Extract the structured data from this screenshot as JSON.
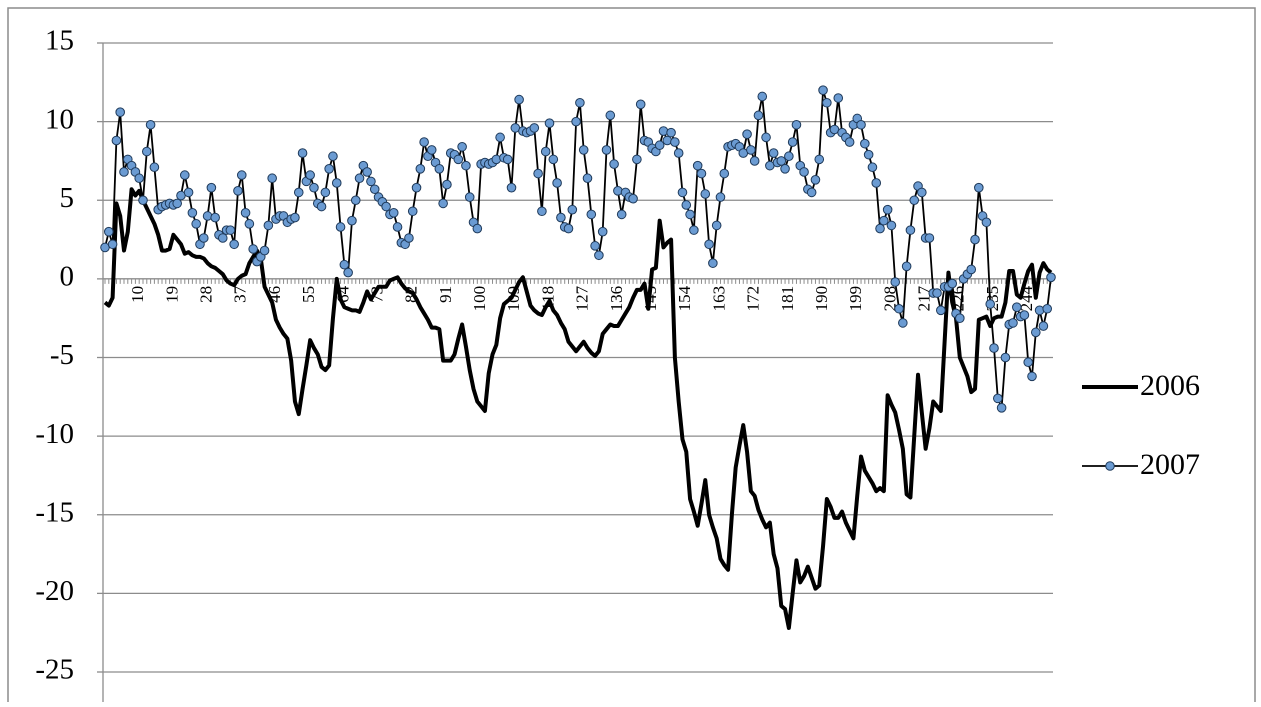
{
  "chart_data": {
    "type": "line",
    "categories": [
      null,
      null,
      null,
      null,
      null,
      null,
      null,
      null,
      null,
      10,
      null,
      null,
      null,
      null,
      null,
      null,
      null,
      null,
      19,
      null,
      null,
      null,
      null,
      null,
      null,
      null,
      null,
      28,
      null,
      null,
      null,
      null,
      null,
      null,
      null,
      null,
      37,
      null,
      null,
      null,
      null,
      null,
      null,
      null,
      null,
      46,
      null,
      null,
      null,
      null,
      null,
      null,
      null,
      null,
      55,
      null,
      null,
      null,
      null,
      null,
      null,
      null,
      null,
      64,
      null,
      null,
      null,
      null,
      null,
      null,
      null,
      null,
      73,
      null,
      null,
      null,
      null,
      null,
      null,
      null,
      null,
      82,
      null,
      null,
      null,
      null,
      null,
      null,
      null,
      null,
      91,
      null,
      null,
      null,
      null,
      null,
      null,
      null,
      null,
      100,
      null,
      null,
      null,
      null,
      null,
      null,
      null,
      null,
      109,
      null,
      null,
      null,
      null,
      null,
      null,
      null,
      null,
      118,
      null,
      null,
      null,
      null,
      null,
      null,
      null,
      null,
      127,
      null,
      null,
      null,
      null,
      null,
      null,
      null,
      null,
      136,
      null,
      null,
      null,
      null,
      null,
      null,
      null,
      null,
      145,
      null,
      null,
      null,
      null,
      null,
      null,
      null,
      null,
      154,
      null,
      null,
      null,
      null,
      null,
      null,
      null,
      null,
      163,
      null,
      null,
      null,
      null,
      null,
      null,
      null,
      null,
      172,
      null,
      null,
      null,
      null,
      null,
      null,
      null,
      null,
      181,
      null,
      null,
      null,
      null,
      null,
      null,
      null,
      null,
      190,
      null,
      null,
      null,
      null,
      null,
      null,
      null,
      null,
      199,
      null,
      null,
      null,
      null,
      null,
      null,
      null,
      null,
      208,
      null,
      null,
      null,
      null,
      null,
      null,
      null,
      null,
      217,
      null,
      null,
      null,
      null,
      null,
      null,
      null,
      null,
      226,
      null,
      null,
      null,
      null,
      null,
      null,
      null,
      null,
      235,
      null,
      null,
      null,
      null,
      null,
      null,
      null,
      null,
      244,
      null,
      null,
      null,
      null,
      null,
      null
    ],
    "series": [
      {
        "name": "2006",
        "color": "#000000",
        "values": [
          -1.5,
          -1.7,
          -1.2,
          4.8,
          4.0,
          1.8,
          3.0,
          5.7,
          5.3,
          5.6,
          5.0,
          4.5,
          4.0,
          3.5,
          2.8,
          1.8,
          1.8,
          1.9,
          2.8,
          2.5,
          2.2,
          1.6,
          1.7,
          1.5,
          1.4,
          1.4,
          1.3,
          1.0,
          0.8,
          0.7,
          0.5,
          0.3,
          -0.1,
          -0.3,
          -0.4,
          0.0,
          0.2,
          0.3,
          1.0,
          1.4,
          1.8,
          1.3,
          -0.5,
          -1.0,
          -1.5,
          -2.6,
          -3.1,
          -3.5,
          -3.8,
          -5.2,
          -7.8,
          -8.6,
          -7.0,
          -5.5,
          -3.9,
          -4.4,
          -4.8,
          -5.6,
          -5.8,
          -5.5,
          -2.5,
          0.0,
          -1.3,
          -1.8,
          -1.9,
          -2.0,
          -2.0,
          -2.1,
          -1.5,
          -0.8,
          -1.3,
          -0.9,
          -0.5,
          -0.5,
          -0.5,
          -0.1,
          0.0,
          0.1,
          -0.3,
          -0.6,
          -0.8,
          -0.9,
          -1.3,
          -1.8,
          -2.2,
          -2.6,
          -3.1,
          -3.1,
          -3.2,
          -5.2,
          -5.2,
          -5.2,
          -4.8,
          -3.8,
          -2.9,
          -4.3,
          -5.8,
          -7.0,
          -7.8,
          -8.1,
          -8.4,
          -6.0,
          -4.8,
          -4.2,
          -2.5,
          -1.6,
          -1.4,
          -1.2,
          -0.7,
          -0.2,
          0.1,
          -0.8,
          -1.7,
          -2.0,
          -2.2,
          -2.3,
          -1.8,
          -1.4,
          -2.0,
          -2.3,
          -2.8,
          -3.2,
          -4.0,
          -4.3,
          -4.6,
          -4.3,
          -4.0,
          -4.4,
          -4.7,
          -4.9,
          -4.6,
          -3.5,
          -3.2,
          -2.9,
          -3.0,
          -3.0,
          -2.6,
          -2.2,
          -1.8,
          -1.2,
          -0.7,
          -0.7,
          -0.3,
          -1.9,
          0.6,
          0.7,
          3.7,
          2.0,
          2.3,
          2.5,
          -5.0,
          -7.8,
          -10.2,
          -11.0,
          -14.0,
          -14.8,
          -15.7,
          -14.3,
          -12.8,
          -15.0,
          -15.8,
          -16.5,
          -17.8,
          -18.2,
          -18.5,
          -15.0,
          -12.0,
          -10.6,
          -9.3,
          -11.0,
          -13.5,
          -13.8,
          -14.7,
          -15.3,
          -15.8,
          -15.5,
          -17.5,
          -18.4,
          -20.8,
          -21.0,
          -22.2,
          -20.0,
          -17.9,
          -19.3,
          -18.9,
          -18.3,
          -19.0,
          -19.7,
          -19.5,
          -17.0,
          -14.0,
          -14.5,
          -15.2,
          -15.2,
          -14.8,
          -15.5,
          -16.0,
          -16.5,
          -13.8,
          -11.3,
          -12.2,
          -12.6,
          -13.0,
          -13.5,
          -13.3,
          -13.5,
          -7.4,
          -8.0,
          -8.5,
          -9.6,
          -10.8,
          -13.7,
          -13.9,
          -10.0,
          -6.1,
          -8.5,
          -10.8,
          -9.5,
          -7.8,
          -8.1,
          -8.4,
          -4.0,
          0.4,
          -1.5,
          -2.5,
          -5.0,
          -5.6,
          -6.2,
          -7.2,
          -7.0,
          -2.6,
          -2.5,
          -2.4,
          -3.0,
          -2.5,
          -2.4,
          -2.4,
          -1.5,
          0.5,
          0.5,
          -1.0,
          -1.2,
          -0.3,
          0.5,
          0.9,
          -1.2,
          0.4,
          1.0,
          0.6,
          0.4
        ]
      },
      {
        "name": "2007",
        "color": "#000000",
        "marker_color": "#6b9bd2",
        "values": [
          2.0,
          3.0,
          2.2,
          8.8,
          10.6,
          6.8,
          7.6,
          7.2,
          6.8,
          6.4,
          5.0,
          8.1,
          9.8,
          7.1,
          4.4,
          4.6,
          4.7,
          4.8,
          4.7,
          4.8,
          5.3,
          6.6,
          5.5,
          4.2,
          3.5,
          2.2,
          2.6,
          4.0,
          5.8,
          3.9,
          2.8,
          2.6,
          3.1,
          3.1,
          2.2,
          5.6,
          6.6,
          4.2,
          3.5,
          1.9,
          1.1,
          1.4,
          1.8,
          3.4,
          6.4,
          3.8,
          4.0,
          4.0,
          3.6,
          3.8,
          3.9,
          5.5,
          8.0,
          6.2,
          6.6,
          5.8,
          4.8,
          4.6,
          5.5,
          7.0,
          7.8,
          6.1,
          3.3,
          0.9,
          0.4,
          3.7,
          5.0,
          6.4,
          7.2,
          6.8,
          6.2,
          5.7,
          5.2,
          4.9,
          4.6,
          4.1,
          4.2,
          3.3,
          2.3,
          2.2,
          2.6,
          4.3,
          5.8,
          7.0,
          8.7,
          7.8,
          8.2,
          7.4,
          7.0,
          4.8,
          6.0,
          8.0,
          7.9,
          7.6,
          8.4,
          7.2,
          5.2,
          3.6,
          3.2,
          7.3,
          7.4,
          7.3,
          7.4,
          7.6,
          9.0,
          7.7,
          7.6,
          5.8,
          9.6,
          11.4,
          9.4,
          9.3,
          9.4,
          9.6,
          6.7,
          4.3,
          8.1,
          9.9,
          7.6,
          6.1,
          3.9,
          3.3,
          3.2,
          4.4,
          10.0,
          11.2,
          8.2,
          6.4,
          4.1,
          2.1,
          1.5,
          3.0,
          8.2,
          10.4,
          7.3,
          5.6,
          4.1,
          5.5,
          5.2,
          5.1,
          7.6,
          11.1,
          8.8,
          8.7,
          8.3,
          8.1,
          8.5,
          9.4,
          8.8,
          9.3,
          8.7,
          8.0,
          5.5,
          4.7,
          4.1,
          3.1,
          7.2,
          6.7,
          5.4,
          2.2,
          1.0,
          3.4,
          5.2,
          6.7,
          8.4,
          8.5,
          8.6,
          8.4,
          8.0,
          9.2,
          8.2,
          7.5,
          10.4,
          11.6,
          9.0,
          7.2,
          8.0,
          7.4,
          7.5,
          7.0,
          7.8,
          8.7,
          9.8,
          7.2,
          6.8,
          5.7,
          5.5,
          6.3,
          7.6,
          12.0,
          11.2,
          9.3,
          9.5,
          11.5,
          9.3,
          9.0,
          8.7,
          9.8,
          10.2,
          9.8,
          8.6,
          7.9,
          7.1,
          6.1,
          3.2,
          3.7,
          4.4,
          3.4,
          -0.2,
          -1.9,
          -2.8,
          0.8,
          3.1,
          5.0,
          5.9,
          5.5,
          2.6,
          2.6,
          -0.9,
          -0.9,
          -2.0,
          -0.5,
          -0.5,
          -0.3,
          -2.2,
          -2.5,
          0.0,
          0.3,
          0.6,
          2.5,
          5.8,
          4.0,
          3.6,
          -1.6,
          -4.4,
          -7.6,
          -8.2,
          -5.0,
          -2.9,
          -2.8,
          -1.8,
          -2.4,
          -2.3,
          -5.3,
          -6.2,
          -3.4,
          -2.0,
          -3.0,
          -1.9,
          0.1
        ]
      }
    ],
    "ylim": [
      -25,
      15
    ],
    "yticks": [
      -25,
      -20,
      -15,
      -10,
      -5,
      0,
      5,
      10,
      15
    ],
    "grid": true,
    "legend": "right"
  }
}
